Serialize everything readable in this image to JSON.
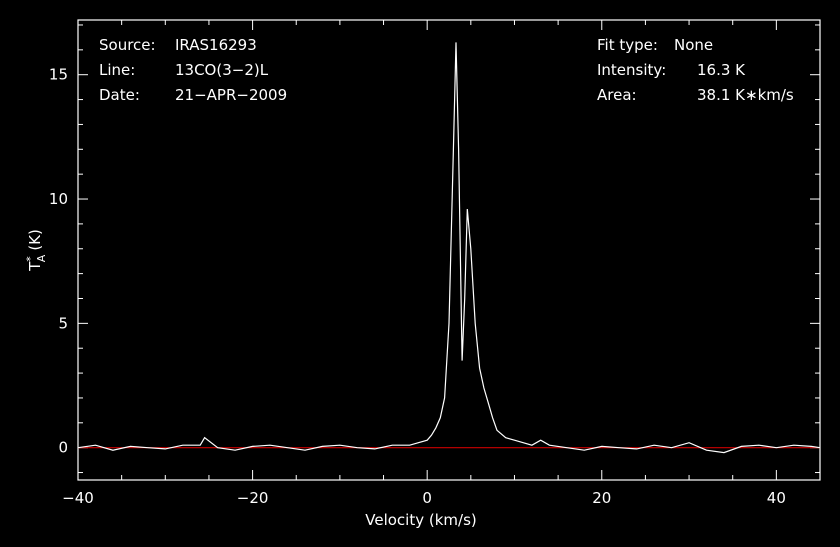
{
  "chart_data": {
    "type": "line",
    "xlabel": "Velocity (km/s)",
    "ylabel": "T*A (K)",
    "ylabel_parts": {
      "main": "T",
      "sup": "*",
      "sub": "A",
      "unit": "(K)"
    },
    "xlim": [
      -40,
      45
    ],
    "ylim": [
      -1.3,
      17.2
    ],
    "x_ticks": [
      -40,
      -20,
      0,
      20,
      40
    ],
    "x_tick_labels": [
      "−40",
      "−20",
      "0",
      "20",
      "40"
    ],
    "y_ticks": [
      0,
      5,
      10,
      15
    ],
    "y_tick_labels": [
      "0",
      "5",
      "10",
      "15"
    ],
    "baseline": 0,
    "annotations": {
      "left": [
        {
          "key": "Source:",
          "value": "IRAS16293"
        },
        {
          "key": "Line:",
          "value": "13CO(3−2)L"
        },
        {
          "key": "Date:",
          "value": "21−APR−2009"
        }
      ],
      "right": [
        {
          "key": "Fit type:",
          "value": "None"
        },
        {
          "key": "Intensity:",
          "value": "16.3 K"
        },
        {
          "key": "Area:",
          "value": "38.1 K∗km/s"
        }
      ]
    },
    "series": [
      {
        "line_color": "#ffffff",
        "x": [
          -40,
          -38,
          -36,
          -34,
          -32,
          -30,
          -28,
          -26,
          -25.5,
          -24,
          -22,
          -20,
          -18,
          -16,
          -14,
          -12,
          -10,
          -8,
          -6,
          -4,
          -2,
          -1,
          0,
          0.5,
          1,
          1.5,
          2,
          2.5,
          3,
          3.3,
          3.6,
          4,
          4.3,
          4.6,
          5,
          5.5,
          6,
          6.5,
          7,
          7.5,
          8,
          9,
          10,
          11,
          12,
          13,
          14,
          16,
          18,
          20,
          22,
          24,
          26,
          28,
          30,
          32,
          34,
          36,
          38,
          40,
          42,
          44,
          45
        ],
        "y": [
          0,
          0.1,
          -0.1,
          0.05,
          0,
          -0.05,
          0.1,
          0.1,
          0.4,
          0,
          -0.1,
          0.05,
          0.1,
          0,
          -0.1,
          0.05,
          0.1,
          0,
          -0.05,
          0.1,
          0.1,
          0.2,
          0.3,
          0.5,
          0.8,
          1.2,
          2,
          5,
          12,
          16.3,
          12,
          3.5,
          6,
          9.6,
          8,
          5,
          3.2,
          2.4,
          1.8,
          1.2,
          0.7,
          0.4,
          0.3,
          0.2,
          0.1,
          0.3,
          0.1,
          0,
          -0.1,
          0.05,
          0,
          -0.05,
          0.1,
          0,
          0.2,
          -0.1,
          -0.2,
          0.05,
          0.1,
          0,
          0.1,
          0.05,
          0
        ]
      }
    ]
  }
}
